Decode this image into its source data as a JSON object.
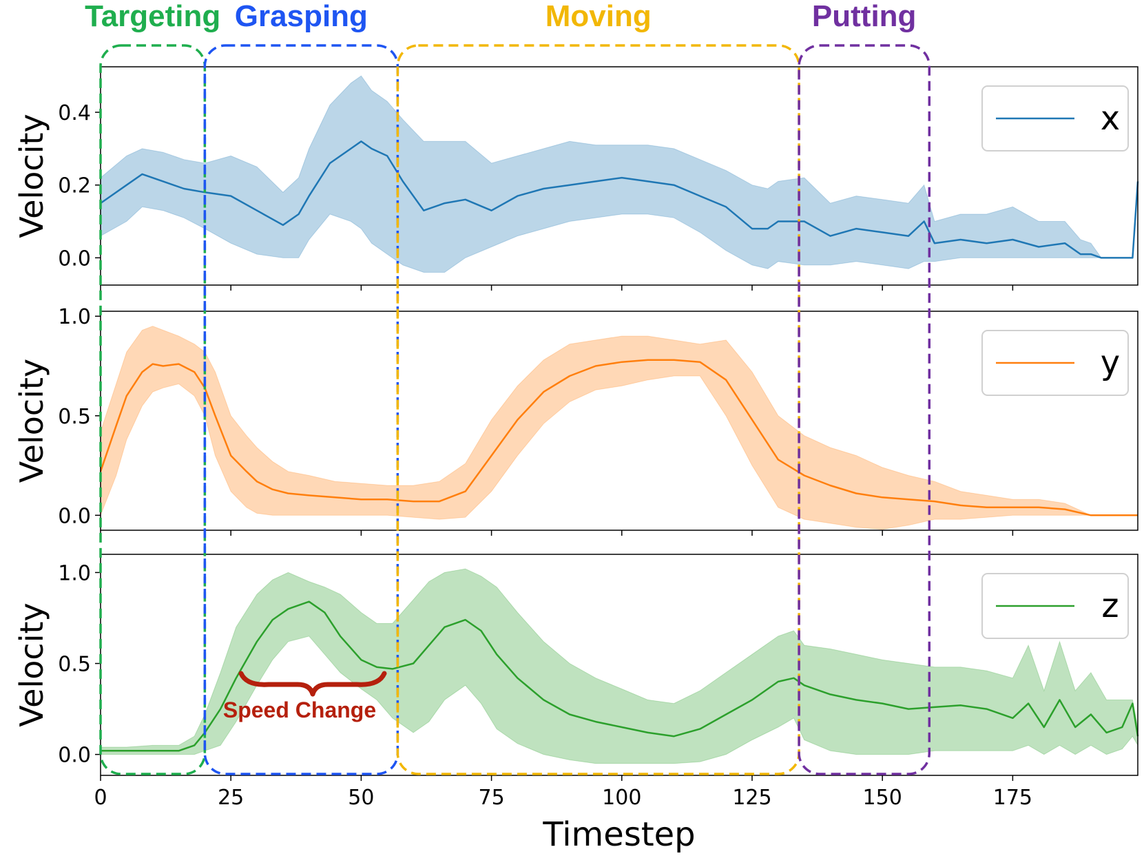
{
  "phases": [
    {
      "label": "Targeting",
      "color": "#1fae4e",
      "start": 0,
      "end": 20
    },
    {
      "label": "Grasping",
      "color": "#1e55f2",
      "start": 20,
      "end": 57
    },
    {
      "label": "Moving",
      "color": "#f2b705",
      "start": 57,
      "end": 134
    },
    {
      "label": "Putting",
      "color": "#7030a0",
      "start": 134,
      "end": 159
    }
  ],
  "annotation": {
    "label": "Speed Change",
    "color": "#b5200d"
  },
  "chart_data": [
    {
      "type": "line",
      "series_name": "x",
      "color": "#1f77b4",
      "xlabel": "Timestep",
      "ylabel": "Velocity",
      "xlim": [
        0,
        199
      ],
      "ylim": [
        -0.075,
        0.525
      ],
      "yticks": [
        0.0,
        0.2,
        0.4
      ],
      "ytick_labels": [
        "0.0",
        "0.2",
        "0.4"
      ],
      "legend_position": "top-right",
      "x": [
        0,
        5,
        8,
        12,
        16,
        20,
        25,
        30,
        35,
        38,
        40,
        44,
        48,
        50,
        52,
        55,
        58,
        62,
        66,
        70,
        75,
        80,
        85,
        90,
        95,
        100,
        105,
        110,
        115,
        120,
        125,
        128,
        130,
        135,
        140,
        145,
        150,
        155,
        158,
        160,
        165,
        170,
        175,
        180,
        185,
        188,
        190,
        192,
        195,
        198,
        199
      ],
      "mean": [
        0.15,
        0.2,
        0.23,
        0.21,
        0.19,
        0.18,
        0.17,
        0.13,
        0.09,
        0.12,
        0.17,
        0.26,
        0.3,
        0.32,
        0.3,
        0.28,
        0.21,
        0.13,
        0.15,
        0.16,
        0.13,
        0.17,
        0.19,
        0.2,
        0.21,
        0.22,
        0.21,
        0.2,
        0.17,
        0.14,
        0.08,
        0.08,
        0.1,
        0.1,
        0.06,
        0.08,
        0.07,
        0.06,
        0.1,
        0.04,
        0.05,
        0.04,
        0.05,
        0.03,
        0.04,
        0.01,
        0.01,
        0.0,
        0.0,
        0.0,
        0.21
      ],
      "lower": [
        0.06,
        0.1,
        0.14,
        0.13,
        0.11,
        0.08,
        0.04,
        0.01,
        0.0,
        0.0,
        0.05,
        0.12,
        0.1,
        0.08,
        0.04,
        0.01,
        -0.02,
        -0.04,
        -0.04,
        0.0,
        0.03,
        0.06,
        0.08,
        0.1,
        0.11,
        0.12,
        0.12,
        0.11,
        0.07,
        0.02,
        -0.02,
        -0.03,
        -0.01,
        -0.02,
        -0.02,
        -0.01,
        -0.02,
        -0.03,
        -0.01,
        -0.01,
        0.0,
        0.0,
        0.0,
        0.0,
        0.0,
        0.0,
        0.0,
        0.0,
        0.0,
        0.0,
        0.21
      ],
      "upper": [
        0.22,
        0.28,
        0.3,
        0.29,
        0.27,
        0.26,
        0.28,
        0.25,
        0.18,
        0.22,
        0.3,
        0.42,
        0.48,
        0.5,
        0.46,
        0.43,
        0.38,
        0.32,
        0.32,
        0.32,
        0.26,
        0.28,
        0.3,
        0.32,
        0.31,
        0.31,
        0.31,
        0.3,
        0.27,
        0.24,
        0.2,
        0.19,
        0.21,
        0.22,
        0.15,
        0.17,
        0.16,
        0.15,
        0.2,
        0.1,
        0.12,
        0.12,
        0.14,
        0.1,
        0.1,
        0.05,
        0.04,
        0.0,
        0.0,
        0.0,
        0.21
      ]
    },
    {
      "type": "line",
      "series_name": "y",
      "color": "#ff7f0e",
      "xlabel": "Timestep",
      "ylabel": "Velocity",
      "xlim": [
        0,
        199
      ],
      "ylim": [
        -0.075,
        1.025
      ],
      "yticks": [
        0.0,
        0.5,
        1.0
      ],
      "ytick_labels": [
        "0.0",
        "0.5",
        "1.0"
      ],
      "legend_position": "top-right",
      "x": [
        0,
        3,
        5,
        8,
        10,
        12,
        15,
        18,
        20,
        22,
        25,
        28,
        30,
        33,
        36,
        40,
        45,
        50,
        55,
        60,
        65,
        70,
        75,
        80,
        85,
        90,
        95,
        100,
        105,
        110,
        115,
        120,
        125,
        130,
        135,
        140,
        145,
        150,
        155,
        160,
        165,
        170,
        175,
        180,
        185,
        190,
        195,
        199
      ],
      "mean": [
        0.22,
        0.45,
        0.6,
        0.72,
        0.76,
        0.75,
        0.76,
        0.72,
        0.64,
        0.5,
        0.3,
        0.22,
        0.17,
        0.13,
        0.11,
        0.1,
        0.09,
        0.08,
        0.08,
        0.07,
        0.07,
        0.12,
        0.3,
        0.48,
        0.62,
        0.7,
        0.75,
        0.77,
        0.78,
        0.78,
        0.77,
        0.68,
        0.48,
        0.28,
        0.2,
        0.15,
        0.11,
        0.09,
        0.08,
        0.07,
        0.05,
        0.04,
        0.04,
        0.04,
        0.03,
        0.0,
        0.0,
        0.0
      ],
      "lower": [
        0.0,
        0.2,
        0.38,
        0.55,
        0.62,
        0.64,
        0.66,
        0.6,
        0.5,
        0.3,
        0.12,
        0.04,
        0.01,
        0.0,
        0.0,
        0.0,
        0.0,
        0.0,
        0.0,
        -0.01,
        -0.02,
        -0.01,
        0.12,
        0.3,
        0.46,
        0.57,
        0.63,
        0.65,
        0.68,
        0.7,
        0.7,
        0.5,
        0.25,
        0.04,
        -0.02,
        -0.04,
        -0.06,
        -0.07,
        -0.05,
        -0.02,
        -0.02,
        -0.01,
        0.0,
        0.0,
        0.0,
        0.0,
        0.0,
        0.0
      ],
      "upper": [
        0.42,
        0.66,
        0.82,
        0.93,
        0.95,
        0.93,
        0.9,
        0.86,
        0.82,
        0.72,
        0.5,
        0.4,
        0.34,
        0.27,
        0.22,
        0.2,
        0.17,
        0.16,
        0.15,
        0.15,
        0.17,
        0.26,
        0.48,
        0.65,
        0.78,
        0.86,
        0.88,
        0.9,
        0.9,
        0.88,
        0.86,
        0.88,
        0.72,
        0.5,
        0.4,
        0.34,
        0.3,
        0.24,
        0.2,
        0.17,
        0.12,
        0.1,
        0.08,
        0.08,
        0.06,
        0.0,
        0.0,
        0.0
      ]
    },
    {
      "type": "line",
      "series_name": "z",
      "color": "#2ca02c",
      "xlabel": "Timestep",
      "ylabel": "Velocity",
      "xlim": [
        0,
        199
      ],
      "ylim": [
        -0.115,
        1.1
      ],
      "yticks": [
        0.0,
        0.5,
        1.0
      ],
      "ytick_labels": [
        "0.0",
        "0.5",
        "1.0"
      ],
      "legend_position": "top-right",
      "x": [
        0,
        5,
        10,
        15,
        18,
        20,
        23,
        26,
        30,
        33,
        36,
        40,
        43,
        46,
        50,
        53,
        56,
        60,
        63,
        66,
        70,
        73,
        76,
        80,
        85,
        90,
        95,
        100,
        105,
        110,
        115,
        120,
        125,
        130,
        133,
        135,
        140,
        145,
        150,
        155,
        160,
        165,
        170,
        175,
        178,
        181,
        184,
        187,
        190,
        193,
        196,
        198,
        199
      ],
      "mean": [
        0.02,
        0.02,
        0.02,
        0.02,
        0.05,
        0.12,
        0.25,
        0.42,
        0.62,
        0.74,
        0.8,
        0.84,
        0.78,
        0.65,
        0.52,
        0.48,
        0.47,
        0.5,
        0.6,
        0.7,
        0.74,
        0.68,
        0.55,
        0.42,
        0.3,
        0.22,
        0.18,
        0.15,
        0.12,
        0.1,
        0.14,
        0.22,
        0.3,
        0.4,
        0.42,
        0.38,
        0.33,
        0.3,
        0.28,
        0.25,
        0.26,
        0.27,
        0.25,
        0.2,
        0.28,
        0.15,
        0.3,
        0.15,
        0.22,
        0.12,
        0.15,
        0.28,
        0.1
      ],
      "lower": [
        0.0,
        0.0,
        0.0,
        0.0,
        0.0,
        0.02,
        0.05,
        0.18,
        0.38,
        0.52,
        0.62,
        0.65,
        0.55,
        0.45,
        0.36,
        0.3,
        0.2,
        0.12,
        0.18,
        0.3,
        0.38,
        0.28,
        0.14,
        0.06,
        0.0,
        -0.03,
        -0.05,
        -0.05,
        -0.05,
        -0.05,
        -0.04,
        0.0,
        0.08,
        0.15,
        0.2,
        0.08,
        0.02,
        0.0,
        0.0,
        0.0,
        0.02,
        0.02,
        0.02,
        0.02,
        0.05,
        0.0,
        0.05,
        0.0,
        0.05,
        0.0,
        0.03,
        0.1,
        0.05
      ],
      "upper": [
        0.04,
        0.04,
        0.05,
        0.05,
        0.1,
        0.22,
        0.45,
        0.7,
        0.88,
        0.96,
        1.0,
        0.95,
        0.92,
        0.88,
        0.78,
        0.72,
        0.72,
        0.85,
        0.95,
        1.0,
        1.02,
        0.98,
        0.92,
        0.78,
        0.62,
        0.5,
        0.42,
        0.36,
        0.3,
        0.28,
        0.35,
        0.45,
        0.55,
        0.65,
        0.68,
        0.6,
        0.58,
        0.55,
        0.52,
        0.5,
        0.48,
        0.48,
        0.46,
        0.42,
        0.6,
        0.35,
        0.62,
        0.35,
        0.45,
        0.3,
        0.3,
        0.3,
        0.15
      ]
    }
  ],
  "x_axis": {
    "label": "Timestep",
    "ticks": [
      0,
      25,
      50,
      75,
      100,
      125,
      150,
      175
    ],
    "tick_labels": [
      "0",
      "25",
      "50",
      "75",
      "100",
      "125",
      "150",
      "175"
    ]
  }
}
